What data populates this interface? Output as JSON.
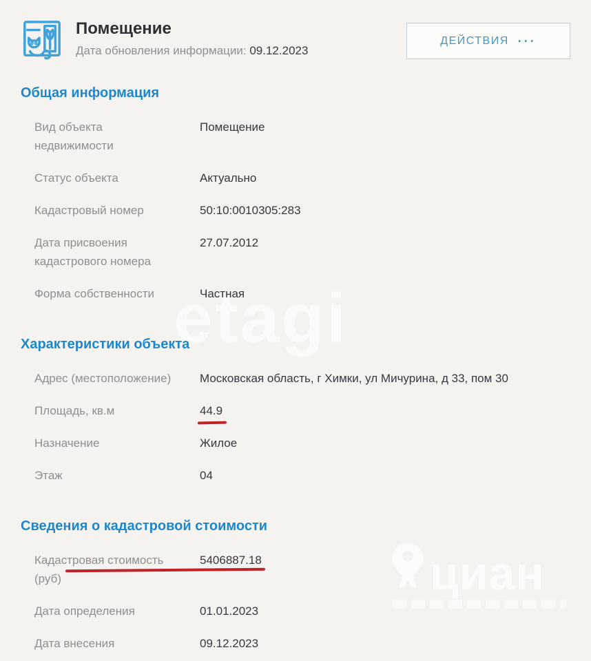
{
  "header": {
    "title": "Помещение",
    "updated_label": "Дата обновления информации:",
    "updated_date": "09.12.2023",
    "actions_label": "ДЕЙСТВИЯ",
    "actions_dots": "···"
  },
  "sections": [
    {
      "title": "Общая информация",
      "rows": [
        {
          "label": "Вид объекта недвижимости",
          "value": "Помещение"
        },
        {
          "label": "Статус объекта",
          "value": "Актуально"
        },
        {
          "label": "Кадастровый номер",
          "value": "50:10:0010305:283"
        },
        {
          "label": "Дата присвоения кадастрового номера",
          "value": "27.07.2012"
        },
        {
          "label": "Форма собственности",
          "value": "Частная"
        }
      ]
    },
    {
      "title": "Характеристики объекта",
      "rows": [
        {
          "label": "Адрес (местоположение)",
          "value": "Московская область, г Химки, ул Мичурина, д 33, пом 30"
        },
        {
          "label": "Площадь, кв.м",
          "value": "44.9",
          "underline": "value"
        },
        {
          "label": "Назначение",
          "value": "Жилое"
        },
        {
          "label": "Этаж",
          "value": "04"
        }
      ]
    },
    {
      "title": "Сведения о кадастровой стоимости",
      "rows": [
        {
          "label": "Кадастровая стоимость (руб)",
          "value": "5406887.18",
          "underline": "row"
        },
        {
          "label": "Дата определения",
          "value": "01.01.2023"
        },
        {
          "label": "Дата внесения",
          "value": "09.12.2023"
        }
      ]
    }
  ],
  "watermarks": {
    "center": "etagi",
    "brand": "циан"
  },
  "colors": {
    "section_heading_blue": "#1e87c9",
    "button_text_blue": "#4b95bb",
    "label_gray": "#8f8f91",
    "value_dark": "#36383d",
    "red_annotation": "#bf2328",
    "icon_blue": "#3fa3d9",
    "background": "#f4f3f0"
  }
}
